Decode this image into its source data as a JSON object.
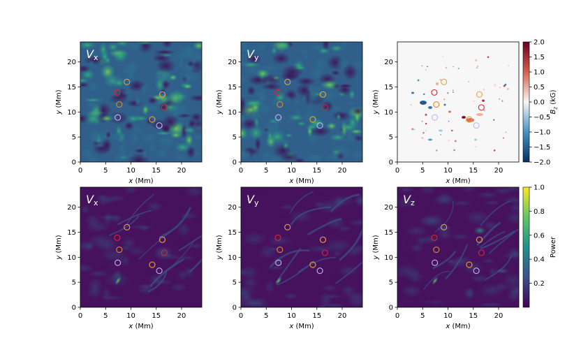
{
  "chart_data": {
    "type": "heatmap",
    "figure_grid": "2 rows x 3 columns",
    "axes": {
      "xlabel": "x (Mm)",
      "ylabel": "y (Mm)",
      "xlim": [
        0,
        24
      ],
      "ylim": [
        0,
        24
      ],
      "xticks": [
        0,
        5,
        10,
        15,
        20
      ],
      "yticks": [
        0,
        5,
        10,
        15,
        20
      ]
    },
    "panels": [
      {
        "id": "top-left",
        "label": "V",
        "sub": "x",
        "colormap": "viridis",
        "row": 0,
        "col": 0
      },
      {
        "id": "top-middle",
        "label": "V",
        "sub": "y",
        "colormap": "viridis",
        "row": 0,
        "col": 1
      },
      {
        "id": "top-right",
        "label": "",
        "sub": "",
        "colormap": "RdBu_r",
        "row": 0,
        "col": 2
      },
      {
        "id": "bottom-left",
        "label": "V",
        "sub": "x",
        "colormap": "viridis",
        "row": 1,
        "col": 0
      },
      {
        "id": "bottom-middle",
        "label": "V",
        "sub": "y",
        "colormap": "viridis",
        "row": 1,
        "col": 1
      },
      {
        "id": "bottom-right",
        "label": "V",
        "sub": "z",
        "colormap": "viridis",
        "row": 1,
        "col": 2
      }
    ],
    "markers": [
      {
        "x": 9.2,
        "y": 16.0,
        "color": "#e3a14b"
      },
      {
        "x": 7.3,
        "y": 13.9,
        "color": "#e5232b"
      },
      {
        "x": 7.7,
        "y": 11.5,
        "color": "#e38b1d"
      },
      {
        "x": 7.4,
        "y": 8.9,
        "color": "#c9b3ee"
      },
      {
        "x": 14.2,
        "y": 8.5,
        "color": "#f0a020"
      },
      {
        "x": 15.6,
        "y": 7.3,
        "color": "#c9b3ee"
      },
      {
        "x": 16.2,
        "y": 13.5,
        "color": "#f2a641"
      },
      {
        "x": 16.6,
        "y": 10.9,
        "color": "#e5232b"
      }
    ],
    "colorbars": [
      {
        "id": "bz",
        "label": "B_z (kG)",
        "ticks": [
          "2.0",
          "1.5",
          "1.0",
          "0.5",
          "0.0",
          "−0.5",
          "−1.0",
          "−1.5",
          "−2.0"
        ],
        "range": [
          -2.0,
          2.0
        ],
        "colormap": "RdBu_r"
      },
      {
        "id": "power",
        "label": "Power",
        "ticks": [
          "1.0",
          "0.8",
          "0.6",
          "0.4",
          "0.2"
        ],
        "range": [
          0.0,
          1.0
        ],
        "colormap": "viridis"
      }
    ]
  }
}
